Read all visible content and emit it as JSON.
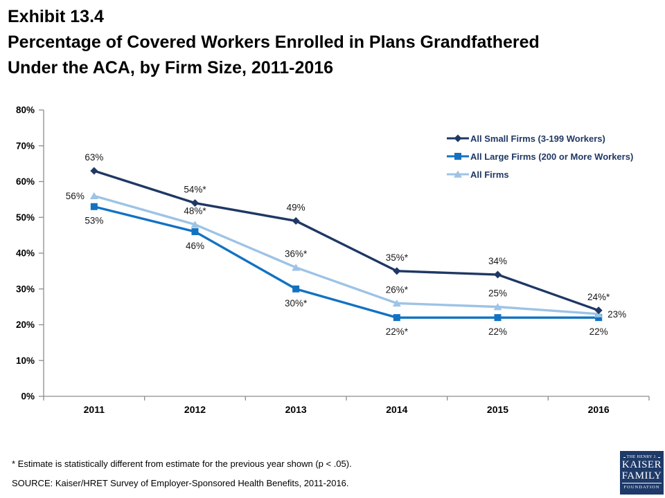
{
  "title": {
    "exhibit": "Exhibit 13.4",
    "line1": "Percentage of Covered Workers Enrolled in Plans Grandfathered",
    "line2": "Under the ACA, by Firm Size, 2011-2016"
  },
  "chart_data": {
    "type": "line",
    "title": "Percentage of Covered Workers Enrolled in Plans Grandfathered Under the ACA, by Firm Size, 2011-2016",
    "categories": [
      "2011",
      "2012",
      "2013",
      "2014",
      "2015",
      "2016"
    ],
    "series": [
      {
        "name": "All Small Firms (3-199 Workers)",
        "marker": "diamond",
        "color": "#1F3864",
        "values": [
          63,
          54,
          49,
          35,
          34,
          24
        ],
        "labels": [
          "63%",
          "54%*",
          "49%",
          "35%*",
          "34%",
          "24%*"
        ]
      },
      {
        "name": "All Large Firms (200 or More Workers)",
        "marker": "square",
        "color": "#1272C2",
        "values": [
          53,
          46,
          30,
          22,
          22,
          22
        ],
        "labels": [
          "53%",
          "46%",
          "30%*",
          "22%*",
          "22%",
          "22%"
        ]
      },
      {
        "name": "All Firms",
        "marker": "triangle",
        "color": "#9DC3E6",
        "values": [
          56,
          48,
          36,
          26,
          25,
          23
        ],
        "labels": [
          "56%",
          "48%*",
          "36%*",
          "26%*",
          "25%",
          "23%"
        ]
      }
    ],
    "xlabel": "",
    "ylabel": "",
    "ylim": [
      0,
      80
    ],
    "ytick_step": 10,
    "ytick_labels": [
      "0%",
      "10%",
      "20%",
      "30%",
      "40%",
      "50%",
      "60%",
      "70%",
      "80%"
    ],
    "grid": false,
    "legend_position": "top-right"
  },
  "footnotes": {
    "asterisk": "* Estimate is statistically different from estimate for the previous year shown (p < .05).",
    "source": "SOURCE: Kaiser/HRET Survey of Employer-Sponsored Health Benefits, 2011-2016."
  },
  "logo": {
    "line1": "THE HENRY J.",
    "line2": "KAISER",
    "line3": "FAMILY",
    "line4": "FOUNDATION",
    "bg_color": "#1E3A68"
  },
  "colors": {
    "axis": "#8C8C8C",
    "data_label": "#171717",
    "legend_text": "#1F3864",
    "title_text": "#000000"
  }
}
